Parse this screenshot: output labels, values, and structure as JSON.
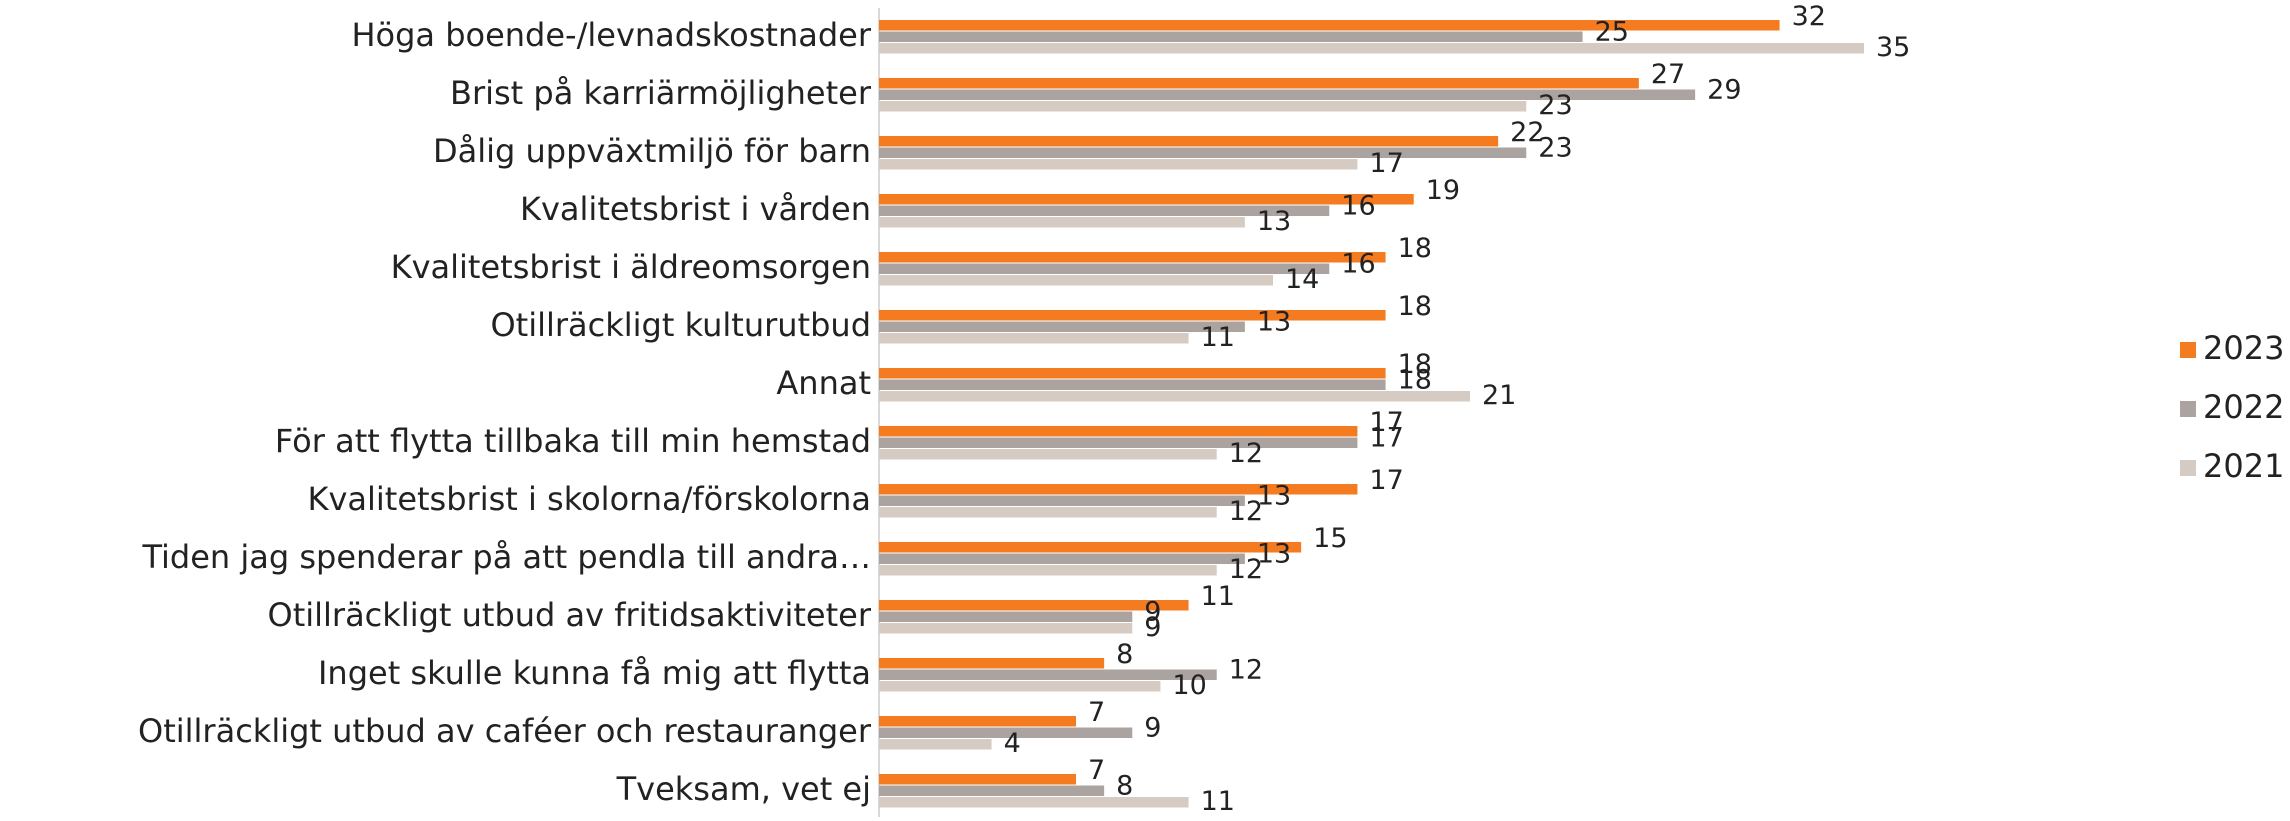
{
  "chart_data": {
    "type": "hbar",
    "categories": [
      "Höga boende-/levnadskostnader",
      "Brist på karriärmöjligheter",
      "Dålig uppväxtmiljö för barn",
      "Kvalitetsbrist i vården",
      "Kvalitetsbrist i äldreomsorgen",
      "Otillräckligt kulturutbud",
      "Annat",
      "För att flytta tillbaka till min hemstad",
      "Kvalitetsbrist i skolorna/förskolorna",
      "Tiden jag spenderar på att pendla till andra…",
      "Otillräckligt utbud av fritidsaktiviteter",
      "Inget skulle kunna få mig att flytta",
      "Otillräckligt utbud av caféer och restauranger",
      "Tveksam, vet ej"
    ],
    "series": [
      {
        "name": "2023",
        "color": "#f47b20",
        "values": [
          32,
          27,
          22,
          19,
          18,
          18,
          18,
          17,
          17,
          15,
          11,
          8,
          7,
          7
        ]
      },
      {
        "name": "2022",
        "color": "#aaa39f",
        "values": [
          25,
          29,
          23,
          16,
          16,
          13,
          18,
          17,
          13,
          13,
          9,
          12,
          9,
          8
        ]
      },
      {
        "name": "2021",
        "color": "#d5cbc3",
        "values": [
          35,
          23,
          17,
          13,
          14,
          11,
          21,
          12,
          12,
          12,
          9,
          10,
          4,
          11
        ]
      }
    ],
    "legend": "right"
  }
}
